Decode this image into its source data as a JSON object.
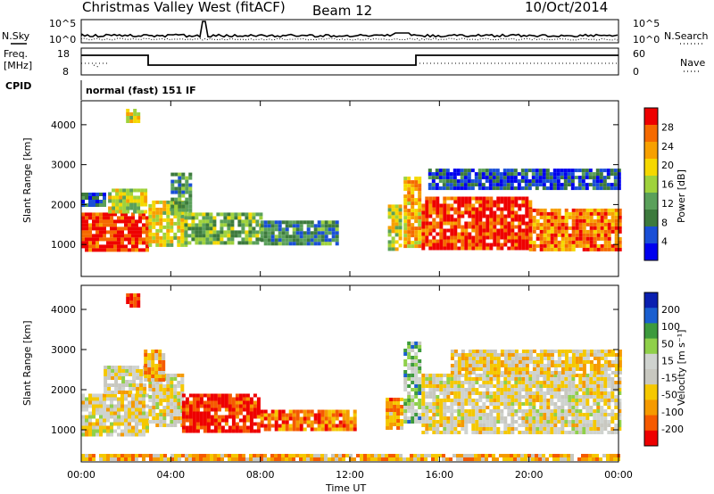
{
  "header": {
    "station": "Christmas Valley West (fitACF)",
    "beam": "Beam 12",
    "date": "10/Oct/2014"
  },
  "left_labels": {
    "nsky": "N.Sky",
    "freq": "Freq.",
    "freq_unit": "[MHz]",
    "cpid": "CPID"
  },
  "right_labels": {
    "nsearch": "N.Search",
    "nave": "Nave"
  },
  "cpid_text": "normal (fast) 151 IF",
  "noise_panel": {
    "left_ticks": [
      "10^5",
      "10^0"
    ],
    "right_ticks": [
      "10^5",
      "10^0"
    ]
  },
  "freq_panel": {
    "left_ticks": [
      "18",
      "8"
    ],
    "right_ticks": [
      "60",
      "0"
    ]
  },
  "colors": {
    "power": [
      "#0000ee",
      "#1a4fd6",
      "#3d7a3d",
      "#5aa05a",
      "#9fd23c",
      "#f5d800",
      "#f7a000",
      "#f56a00",
      "#ee0000"
    ],
    "velocity": [
      "#ee0000",
      "#f55a00",
      "#f59a00",
      "#f5c800",
      "#c8c8c0",
      "#cfd3cf",
      "#8fd04a",
      "#3d9a3d",
      "#1a5fd0",
      "#0a1fb0"
    ]
  },
  "chart_data": [
    {
      "type": "heatmap",
      "name": "Power",
      "ylabel": "Slant Range [km]",
      "xlabel": "",
      "x_ticks": [
        "00:00",
        "04:00",
        "08:00",
        "12:00",
        "16:00",
        "20:00",
        "00:00"
      ],
      "y_ticks": [
        "1000",
        "2000",
        "3000",
        "4000"
      ],
      "ylim": [
        200,
        4600
      ],
      "colorbar": {
        "label": "Power [dB]",
        "ticks": [
          "4",
          "8",
          "12",
          "16",
          "20",
          "24",
          "28"
        ]
      },
      "regions": [
        {
          "t0": 0.0,
          "t1": 2.9,
          "r0": 900,
          "r1": 1800,
          "level": 0.92
        },
        {
          "t0": 1.2,
          "t1": 2.8,
          "r0": 1800,
          "r1": 2400,
          "level": 0.55
        },
        {
          "t0": 0.0,
          "t1": 1.0,
          "r0": 2000,
          "r1": 2300,
          "level": 0.2
        },
        {
          "t0": 3.0,
          "t1": 4.6,
          "r0": 1000,
          "r1": 2100,
          "level": 0.6
        },
        {
          "t0": 4.0,
          "t1": 4.8,
          "r0": 1800,
          "r1": 2800,
          "level": 0.35
        },
        {
          "t0": 4.6,
          "t1": 8.0,
          "r0": 1000,
          "r1": 1800,
          "level": 0.42
        },
        {
          "t0": 8.0,
          "t1": 11.5,
          "r0": 1000,
          "r1": 1600,
          "level": 0.3
        },
        {
          "t0": 13.7,
          "t1": 14.3,
          "r0": 900,
          "r1": 2000,
          "level": 0.55
        },
        {
          "t0": 14.4,
          "t1": 15.1,
          "r0": 1000,
          "r1": 2700,
          "level": 0.7
        },
        {
          "t0": 15.2,
          "t1": 20.0,
          "r0": 900,
          "r1": 2200,
          "level": 0.9
        },
        {
          "t0": 20.0,
          "t1": 24.0,
          "r0": 900,
          "r1": 1900,
          "level": 0.8
        },
        {
          "t0": 15.5,
          "t1": 24.0,
          "r0": 2400,
          "r1": 2900,
          "level": 0.18
        },
        {
          "t0": 2.0,
          "t1": 2.6,
          "r0": 4100,
          "r1": 4400,
          "level": 0.6
        }
      ]
    },
    {
      "type": "heatmap",
      "name": "Velocity",
      "ylabel": "Slant Range [km]",
      "xlabel": "Time UT",
      "x_ticks": [
        "00:00",
        "04:00",
        "08:00",
        "12:00",
        "16:00",
        "20:00",
        "00:00"
      ],
      "y_ticks": [
        "1000",
        "2000",
        "3000",
        "4000"
      ],
      "ylim": [
        200,
        4600
      ],
      "colorbar": {
        "label": "Velocity [m s⁻¹]",
        "ticks": [
          "200",
          "100",
          "50",
          "15",
          "-15",
          "-50",
          "-100",
          "-200"
        ]
      },
      "regions": [
        {
          "t0": 0.0,
          "t1": 2.9,
          "r0": 900,
          "r1": 1900,
          "level": 0.45
        },
        {
          "t0": 1.0,
          "t1": 2.9,
          "r0": 1900,
          "r1": 2600,
          "level": 0.45
        },
        {
          "t0": 3.0,
          "t1": 4.5,
          "r0": 1100,
          "r1": 2400,
          "level": 0.45
        },
        {
          "t0": 2.8,
          "t1": 3.6,
          "r0": 2200,
          "r1": 3000,
          "level": 0.3
        },
        {
          "t0": 4.5,
          "t1": 8.0,
          "r0": 1000,
          "r1": 1900,
          "level": 0.05
        },
        {
          "t0": 8.0,
          "t1": 12.3,
          "r0": 1000,
          "r1": 1500,
          "level": 0.2
        },
        {
          "t0": 13.6,
          "t1": 14.3,
          "r0": 1000,
          "r1": 1800,
          "level": 0.25
        },
        {
          "t0": 14.4,
          "t1": 15.1,
          "r0": 1200,
          "r1": 3200,
          "level": 0.65
        },
        {
          "t0": 15.2,
          "t1": 24.0,
          "r0": 900,
          "r1": 2400,
          "level": 0.45
        },
        {
          "t0": 16.5,
          "t1": 24.0,
          "r0": 2400,
          "r1": 3000,
          "level": 0.4
        },
        {
          "t0": 2.0,
          "t1": 2.6,
          "r0": 4100,
          "r1": 4400,
          "level": 0.05
        },
        {
          "t0": 0.0,
          "t1": 24.0,
          "r0": 250,
          "r1": 400,
          "level": 0.3
        }
      ]
    }
  ]
}
